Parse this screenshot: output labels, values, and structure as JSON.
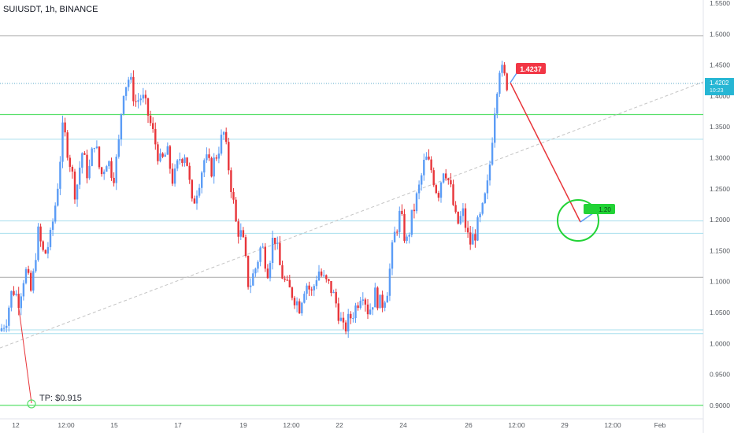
{
  "header": {
    "title": "SUIUSDT, 1h, BINANCE"
  },
  "colors": {
    "up": "#5b9cf6",
    "down": "#e8353a",
    "green_line": "#58e06a",
    "cyan_line": "#a8dfee",
    "gray_line": "#a9a9a9",
    "trend": "#c4c4c4",
    "projection": "#e8353a",
    "price_badge": "#26b6d4",
    "label_red": "#f23645",
    "label_green": "#22d336"
  },
  "chart_data": {
    "type": "candlestick",
    "title": "SUIUSDT, 1h, BINANCE",
    "y_axis": {
      "range": [
        0.88,
        1.55
      ],
      "tick_labels": [
        "1.5500",
        "1.5000",
        "1.4500",
        "1.4000",
        "1.3500",
        "1.3000",
        "1.2500",
        "1.2000",
        "1.1500",
        "1.1000",
        "1.0500",
        "1.0000",
        "0.9500",
        "0.9000"
      ]
    },
    "x_axis": {
      "tick_labels": [
        "12",
        "12:00",
        "15",
        "17",
        "19",
        "12:00",
        "22",
        "24",
        "26",
        "12:00",
        "29",
        "12:00",
        "Feb"
      ]
    },
    "price_path": [
      [
        0,
        1.02
      ],
      [
        8,
        1.04
      ],
      [
        16,
        1.09
      ],
      [
        24,
        1.07
      ],
      [
        32,
        1.12
      ],
      [
        40,
        1.08
      ],
      [
        48,
        1.18
      ],
      [
        56,
        1.14
      ],
      [
        64,
        1.17
      ],
      [
        72,
        1.24
      ],
      [
        80,
        1.35
      ],
      [
        88,
        1.3
      ],
      [
        96,
        1.24
      ],
      [
        104,
        1.31
      ],
      [
        112,
        1.27
      ],
      [
        120,
        1.33
      ],
      [
        128,
        1.27
      ],
      [
        136,
        1.3
      ],
      [
        144,
        1.27
      ],
      [
        150,
        1.31
      ],
      [
        156,
        1.41
      ],
      [
        164,
        1.43
      ],
      [
        172,
        1.39
      ],
      [
        180,
        1.4
      ],
      [
        188,
        1.37
      ],
      [
        196,
        1.33
      ],
      [
        204,
        1.29
      ],
      [
        212,
        1.31
      ],
      [
        220,
        1.26
      ],
      [
        228,
        1.3
      ],
      [
        236,
        1.31
      ],
      [
        244,
        1.22
      ],
      [
        252,
        1.26
      ],
      [
        260,
        1.3
      ],
      [
        268,
        1.28
      ],
      [
        276,
        1.31
      ],
      [
        284,
        1.34
      ],
      [
        292,
        1.27
      ],
      [
        300,
        1.19
      ],
      [
        308,
        1.17
      ],
      [
        316,
        1.09
      ],
      [
        324,
        1.12
      ],
      [
        332,
        1.16
      ],
      [
        340,
        1.12
      ],
      [
        348,
        1.18
      ],
      [
        356,
        1.12
      ],
      [
        364,
        1.09
      ],
      [
        372,
        1.08
      ],
      [
        380,
        1.06
      ],
      [
        388,
        1.1
      ],
      [
        396,
        1.08
      ],
      [
        404,
        1.12
      ],
      [
        412,
        1.1
      ],
      [
        420,
        1.09
      ],
      [
        428,
        1.06
      ],
      [
        436,
        1.02
      ],
      [
        444,
        1.04
      ],
      [
        452,
        1.06
      ],
      [
        460,
        1.09
      ],
      [
        468,
        1.05
      ],
      [
        476,
        1.08
      ],
      [
        484,
        1.06
      ],
      [
        492,
        1.09
      ],
      [
        500,
        1.17
      ],
      [
        508,
        1.21
      ],
      [
        516,
        1.16
      ],
      [
        524,
        1.21
      ],
      [
        532,
        1.25
      ],
      [
        540,
        1.3
      ],
      [
        548,
        1.28
      ],
      [
        556,
        1.24
      ],
      [
        564,
        1.29
      ],
      [
        572,
        1.25
      ],
      [
        580,
        1.19
      ],
      [
        588,
        1.21
      ],
      [
        596,
        1.16
      ],
      [
        604,
        1.18
      ],
      [
        612,
        1.21
      ],
      [
        620,
        1.26
      ],
      [
        628,
        1.38
      ],
      [
        634,
        1.45
      ],
      [
        640,
        1.43
      ],
      [
        644,
        1.42
      ]
    ],
    "last_price": {
      "label": "1.4202",
      "sub": "10:23",
      "value": 1.4202
    },
    "annotations": [
      {
        "text": "1.4237",
        "value": 1.4237
      },
      {
        "text": "TP: $0.915",
        "value": 0.915
      },
      {
        "text": "1.20",
        "value": 1.2
      }
    ],
    "levels": [
      {
        "value": 1.497,
        "style": "gray"
      },
      {
        "value": 1.4202,
        "style": "dotted"
      },
      {
        "value": 1.37,
        "style": "green"
      },
      {
        "value": 1.33,
        "style": "cyan"
      },
      {
        "value": 1.198,
        "style": "cyan"
      },
      {
        "value": 1.178,
        "style": "cyan"
      },
      {
        "value": 1.107,
        "style": "gray"
      },
      {
        "value": 1.022,
        "style": "cyan"
      },
      {
        "value": 1.016,
        "style": "cyan"
      },
      {
        "value": 0.9,
        "style": "green"
      }
    ],
    "grid": false
  }
}
